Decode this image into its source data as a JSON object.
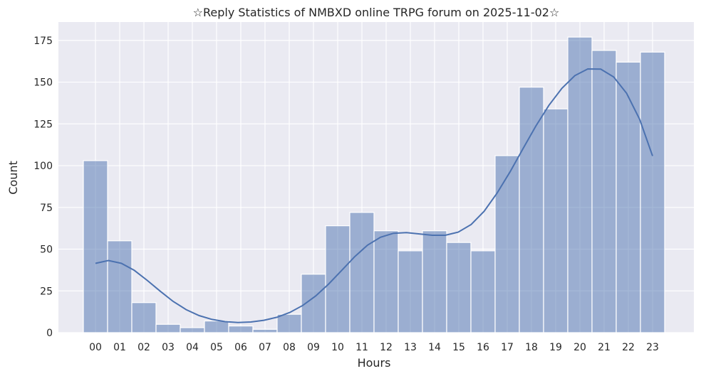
{
  "chart_data": {
    "type": "bar",
    "title": "☆Reply Statistics of NMBXD online TRPG forum on 2025-11-02☆",
    "xlabel": "Hours",
    "ylabel": "Count",
    "categories": [
      "00",
      "01",
      "02",
      "03",
      "04",
      "05",
      "06",
      "07",
      "08",
      "09",
      "10",
      "11",
      "12",
      "13",
      "14",
      "15",
      "16",
      "17",
      "18",
      "19",
      "20",
      "21",
      "22",
      "23"
    ],
    "values": [
      103,
      55,
      18,
      5,
      3,
      7,
      4,
      2,
      11,
      35,
      64,
      72,
      61,
      49,
      61,
      54,
      49,
      106,
      147,
      134,
      177,
      169,
      162,
      168
    ],
    "kde": [
      41.5,
      43.2,
      41.5,
      37.3,
      31.3,
      24.8,
      18.7,
      13.8,
      10.2,
      7.9,
      6.6,
      6.1,
      6.4,
      7.4,
      9.2,
      12.1,
      16.3,
      22.0,
      29.1,
      37.2,
      45.4,
      52.4,
      57.1,
      59.5,
      59.9,
      59.1,
      58.3,
      58.3,
      60.2,
      64.8,
      72.7,
      83.6,
      96.3,
      110.1,
      123.8,
      136.1,
      146.3,
      153.9,
      157.9,
      157.8,
      153.1,
      143.3,
      127.8,
      105.8
    ],
    "yticks": [
      0,
      25,
      50,
      75,
      100,
      125,
      150,
      175
    ],
    "ylim": [
      0,
      186
    ],
    "grid": true,
    "colors": {
      "background": "#EAEAF2",
      "bar": "#4C72B0",
      "line": "#4C72B0",
      "grid": "#FFFFFF"
    }
  }
}
